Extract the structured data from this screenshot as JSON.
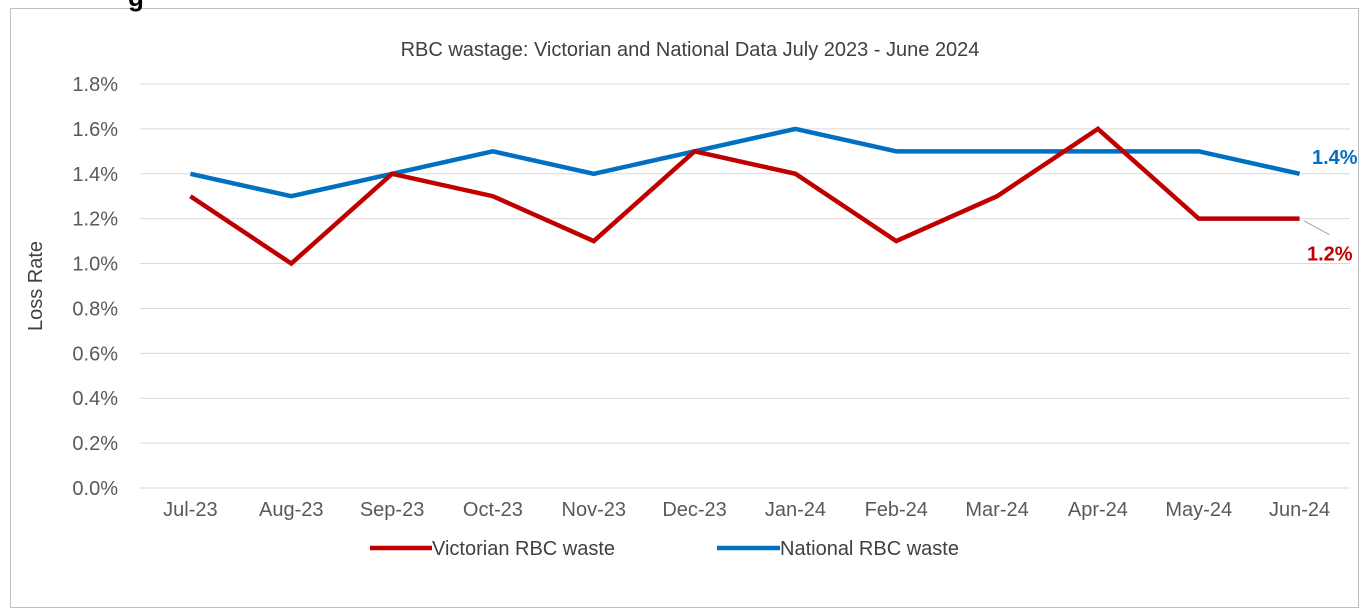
{
  "heading_fragment": "g",
  "chart_data": {
    "type": "line",
    "title": "RBC wastage: Victorian and National Data July 2023 - June 2024",
    "xlabel": "",
    "ylabel": "Loss Rate",
    "categories": [
      "Jul-23",
      "Aug-23",
      "Sep-23",
      "Oct-23",
      "Nov-23",
      "Dec-23",
      "Jan-24",
      "Feb-24",
      "Mar-24",
      "Apr-24",
      "May-24",
      "Jun-24"
    ],
    "ylim": [
      0,
      0.018
    ],
    "yticks": [
      "0.0%",
      "0.2%",
      "0.4%",
      "0.6%",
      "0.8%",
      "1.0%",
      "1.2%",
      "1.4%",
      "1.6%",
      "1.8%"
    ],
    "grid": true,
    "legend_position": "bottom",
    "series": [
      {
        "name": "Victorian RBC waste",
        "color": "#c00000",
        "values": [
          0.013,
          0.01,
          0.014,
          0.013,
          0.011,
          0.015,
          0.014,
          0.011,
          0.013,
          0.016,
          0.012,
          0.012
        ],
        "end_label": "1.2%"
      },
      {
        "name": "National RBC waste",
        "color": "#0070c0",
        "values": [
          0.014,
          0.013,
          0.014,
          0.015,
          0.014,
          0.015,
          0.016,
          0.015,
          0.015,
          0.015,
          0.015,
          0.014
        ],
        "end_label": "1.4%"
      }
    ]
  }
}
